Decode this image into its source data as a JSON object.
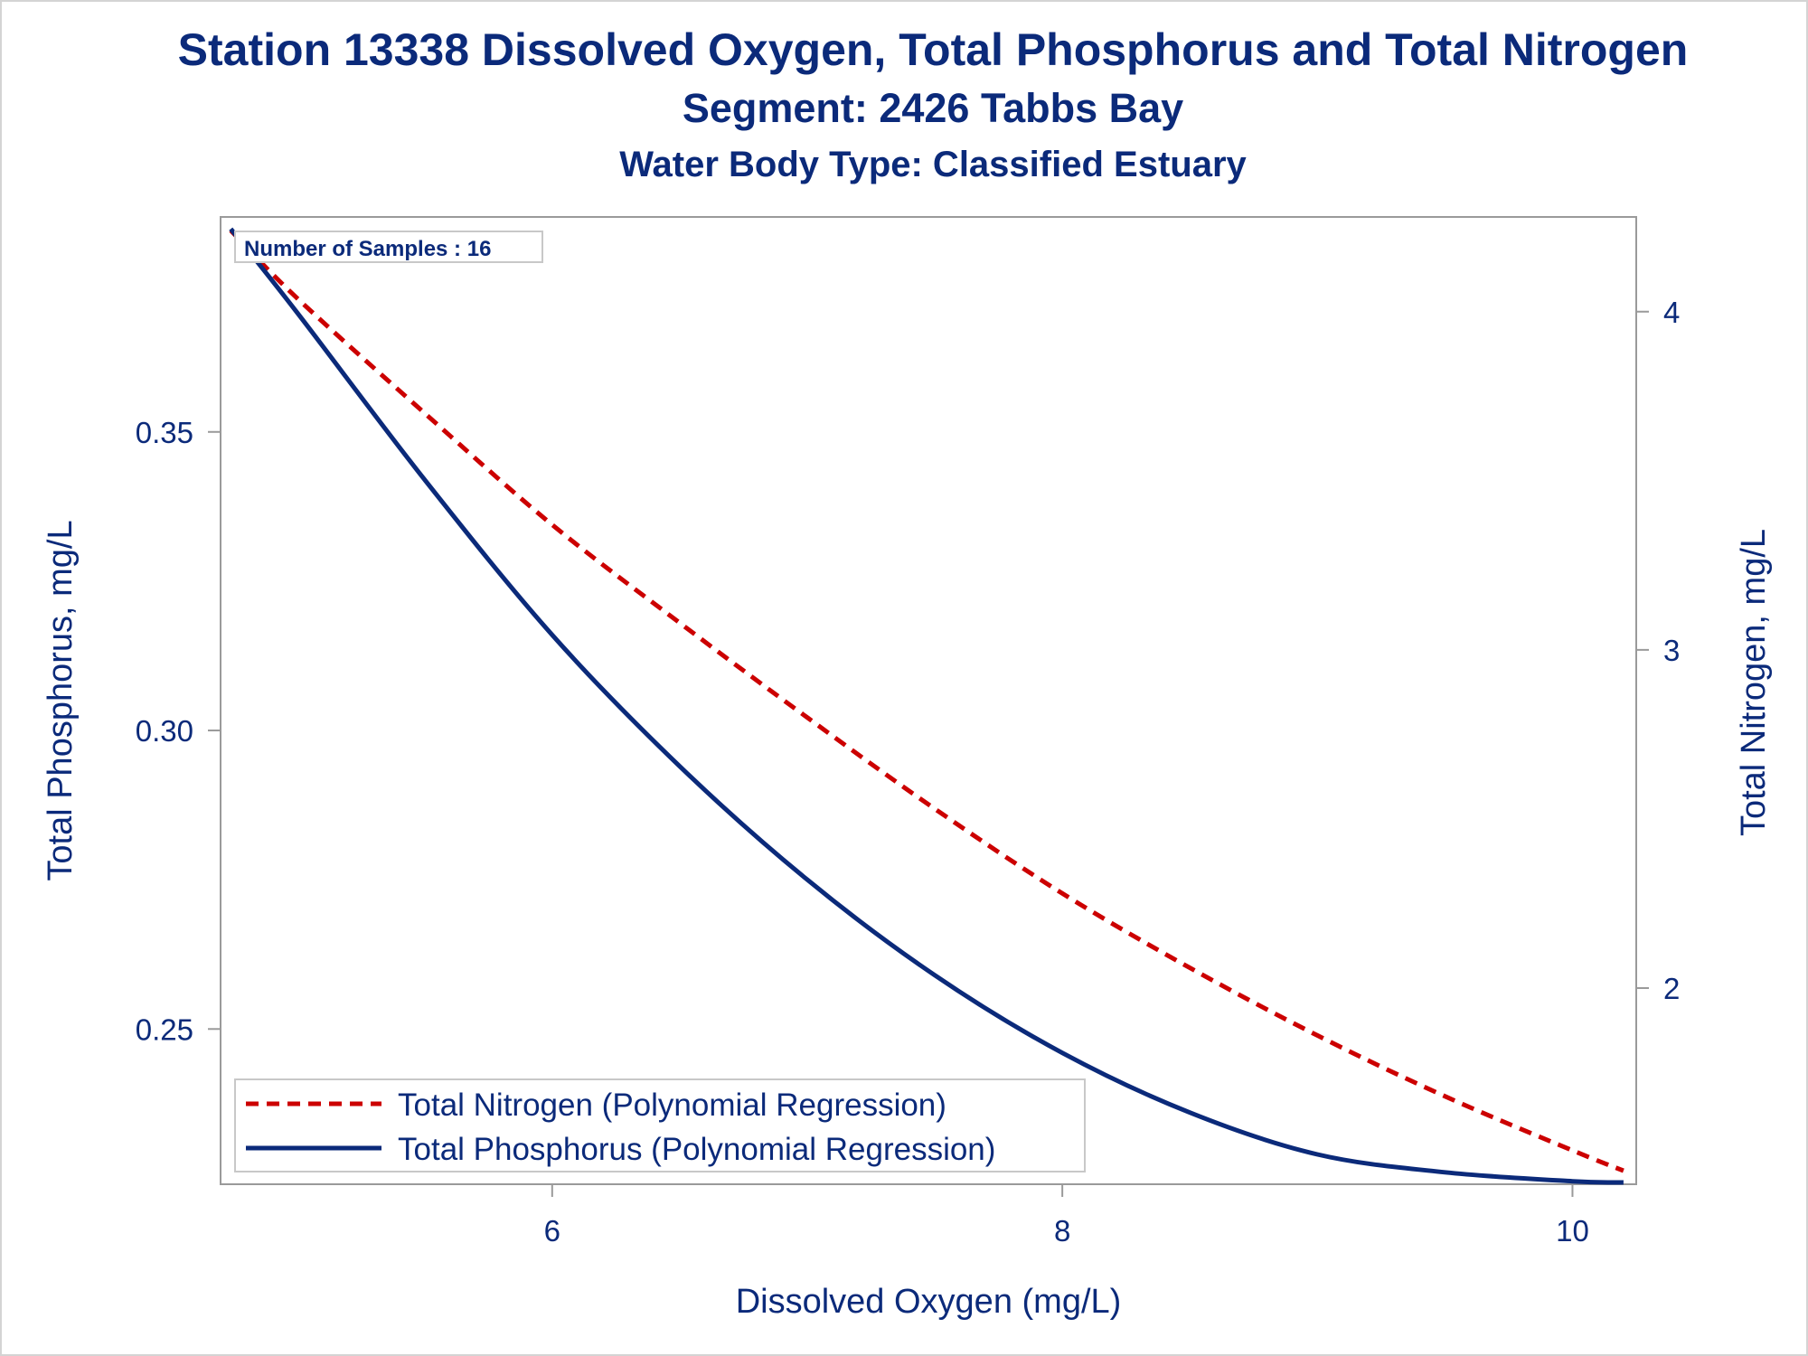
{
  "colors": {
    "text": "#0b2a7a",
    "frame": "#9a9a9a",
    "nitrogen": "#cc0000",
    "phosphorus": "#0b2a7a"
  },
  "chart_data": {
    "type": "line",
    "title": "Station 13338  Dissolved Oxygen, Total Phosphorus and Total Nitrogen",
    "subtitle": "Segment: 2426  Tabbs Bay",
    "subtitle2": "Water Body Type: Classified Estuary",
    "xlabel": "Dissolved Oxygen (mg/L)",
    "ylabel_left": "Total Phosphorus, mg/L",
    "ylabel_right": "Total Nitrogen, mg/L",
    "xlim": [
      4.7,
      10.25
    ],
    "ylim_left": [
      0.224,
      0.386
    ],
    "ylim_right": [
      1.42,
      4.28
    ],
    "x_ticks": [
      "6",
      "8",
      "10"
    ],
    "y_left_ticks": [
      "0.25",
      "0.30",
      "0.35"
    ],
    "y_right_ticks": [
      "2",
      "3",
      "4"
    ],
    "grid": false,
    "annotation": "Number of Samples : 16",
    "legend_position": "bottom-left",
    "series": [
      {
        "name": "Total Nitrogen (Polynomial Regression)",
        "axis": "right",
        "style": "dashed",
        "points": [
          [
            4.74,
            4.24
          ],
          [
            5.0,
            4.04
          ],
          [
            5.5,
            3.7
          ],
          [
            6.0,
            3.37
          ],
          [
            6.5,
            3.08
          ],
          [
            7.0,
            2.8
          ],
          [
            7.5,
            2.53
          ],
          [
            8.0,
            2.28
          ],
          [
            8.5,
            2.06
          ],
          [
            9.0,
            1.86
          ],
          [
            9.5,
            1.68
          ],
          [
            10.0,
            1.52
          ],
          [
            10.2,
            1.46
          ]
        ]
      },
      {
        "name": "Total Phosphorus (Polynomial Regression)",
        "axis": "left",
        "style": "solid",
        "points": [
          [
            4.74,
            0.384
          ],
          [
            5.0,
            0.37
          ],
          [
            5.5,
            0.342
          ],
          [
            6.0,
            0.316
          ],
          [
            6.5,
            0.294
          ],
          [
            7.0,
            0.275
          ],
          [
            7.5,
            0.259
          ],
          [
            8.0,
            0.246
          ],
          [
            8.5,
            0.236
          ],
          [
            9.0,
            0.229
          ],
          [
            9.5,
            0.226
          ],
          [
            10.0,
            0.2245
          ],
          [
            10.2,
            0.2243
          ]
        ]
      }
    ]
  }
}
